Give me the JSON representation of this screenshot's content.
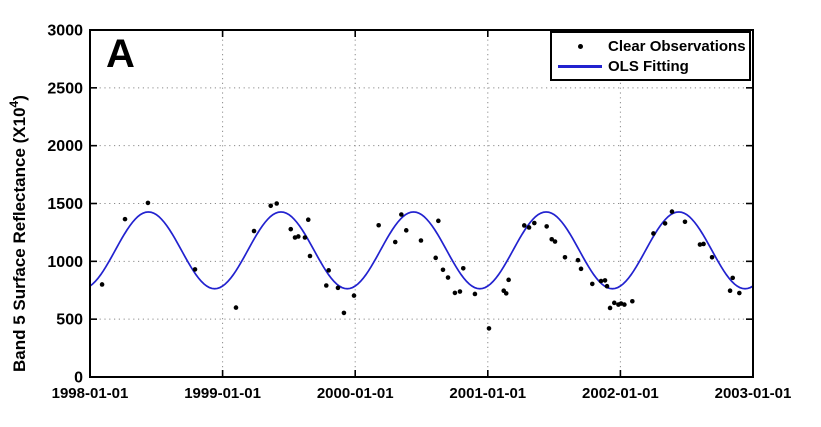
{
  "figure_label": "A",
  "legend": {
    "position": "top-right",
    "items": [
      {
        "label": "Clear Observations",
        "marker": "dot",
        "color": "#000000"
      },
      {
        "label": "OLS Fitting",
        "marker": "line",
        "color": "#2222cf"
      }
    ]
  },
  "chart_data": {
    "type": "scatter",
    "title": "",
    "xlabel": "",
    "ylabel_prefix": "Band 5 Surface Reflectance (X10",
    "ylabel_superscript": "4",
    "ylabel_suffix": ")",
    "x_tick_labels": [
      "1998-01-01",
      "1999-01-01",
      "2000-01-01",
      "2001-01-01",
      "2002-01-01",
      "2003-01-01"
    ],
    "x_range_years": [
      0,
      5
    ],
    "ylim": [
      0,
      3000
    ],
    "y_ticks": [
      0,
      500,
      1000,
      1500,
      2000,
      2500,
      3000
    ],
    "grid": true,
    "grid_style": "dotted",
    "grid_color": "#8a8a8a",
    "series": [
      {
        "name": "Clear Observations",
        "type": "scatter",
        "color": "#000000",
        "x_unit": "years since 1998-01-01",
        "points": [
          [
            0.091,
            800
          ],
          [
            0.264,
            1365
          ],
          [
            0.437,
            1505
          ],
          [
            0.792,
            930
          ],
          [
            1.101,
            600
          ],
          [
            1.237,
            1262
          ],
          [
            1.363,
            1480
          ],
          [
            1.408,
            1500
          ],
          [
            1.514,
            1278
          ],
          [
            1.546,
            1206
          ],
          [
            1.571,
            1215
          ],
          [
            1.621,
            1206
          ],
          [
            1.646,
            1360
          ],
          [
            1.659,
            1046
          ],
          [
            1.782,
            791
          ],
          [
            1.8,
            922
          ],
          [
            1.87,
            771
          ],
          [
            1.915,
            554
          ],
          [
            1.991,
            704
          ],
          [
            2.177,
            1312
          ],
          [
            2.302,
            1167
          ],
          [
            2.348,
            1405
          ],
          [
            2.385,
            1268
          ],
          [
            2.496,
            1180
          ],
          [
            2.607,
            1030
          ],
          [
            2.627,
            1350
          ],
          [
            2.662,
            927
          ],
          [
            2.7,
            860
          ],
          [
            2.752,
            727
          ],
          [
            2.79,
            739
          ],
          [
            2.815,
            940
          ],
          [
            2.903,
            718
          ],
          [
            3.009,
            420
          ],
          [
            3.12,
            746
          ],
          [
            3.139,
            723
          ],
          [
            3.157,
            840
          ],
          [
            3.275,
            1310
          ],
          [
            3.311,
            1293
          ],
          [
            3.351,
            1331
          ],
          [
            3.444,
            1302
          ],
          [
            3.482,
            1191
          ],
          [
            3.507,
            1171
          ],
          [
            3.582,
            1035
          ],
          [
            3.68,
            1010
          ],
          [
            3.703,
            935
          ],
          [
            3.788,
            805
          ],
          [
            3.854,
            830
          ],
          [
            3.884,
            835
          ],
          [
            3.899,
            785
          ],
          [
            3.922,
            597
          ],
          [
            3.954,
            641
          ],
          [
            3.985,
            626
          ],
          [
            4.005,
            635
          ],
          [
            4.03,
            626
          ],
          [
            4.09,
            655
          ],
          [
            4.249,
            1241
          ],
          [
            4.337,
            1328
          ],
          [
            4.389,
            1430
          ],
          [
            4.487,
            1342
          ],
          [
            4.6,
            1145
          ],
          [
            4.627,
            1150
          ],
          [
            4.691,
            1035
          ],
          [
            4.827,
            746
          ],
          [
            4.847,
            857
          ],
          [
            4.897,
            726
          ]
        ]
      },
      {
        "name": "OLS Fitting",
        "type": "sine_fit",
        "color": "#2222cf",
        "mean": 1095,
        "amplitude": 332,
        "period_years": 1,
        "peak_at_year_fraction": 0.44
      }
    ]
  }
}
